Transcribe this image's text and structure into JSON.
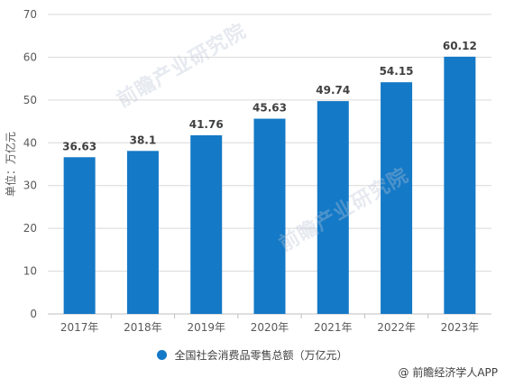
{
  "chart_data": {
    "type": "bar",
    "categories": [
      "2017年",
      "2018年",
      "2019年",
      "2020年",
      "2021年",
      "2022年",
      "2023年"
    ],
    "values": [
      36.63,
      38.1,
      41.76,
      45.63,
      49.74,
      54.15,
      60.12
    ],
    "value_labels": [
      "36.63",
      "38.1",
      "41.76",
      "45.63",
      "49.74",
      "54.15",
      "60.12"
    ],
    "series_name": "全国社会消费品零售总额（万亿元）",
    "ylabel": "单位：万亿元",
    "ylim": [
      0,
      70
    ],
    "yticks": [
      0,
      10,
      20,
      30,
      40,
      50,
      60,
      70
    ],
    "grid": true,
    "legend": "bottom-center",
    "colors": {
      "bar": "#1479c6",
      "grid": "#d9d9d9",
      "axis": "#bfbfbf"
    }
  },
  "watermark": {
    "brand": "前瞻产业研究院"
  },
  "source": "@ 前瞻经济学人APP"
}
